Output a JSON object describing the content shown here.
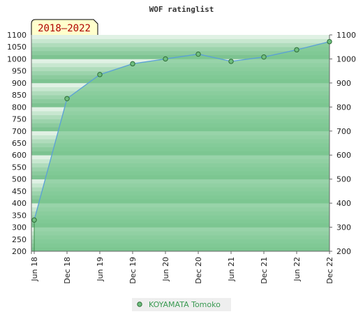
{
  "chart_data": {
    "type": "area",
    "title": "WOF ratinglist",
    "badge": "2018–2022",
    "xlabel": "",
    "ylabel": "",
    "x": [
      "Jun 18",
      "Dec 18",
      "Jun 19",
      "Dec 19",
      "Jun 20",
      "Dec 20",
      "Jun 21",
      "Dec 21",
      "Jun 22",
      "Dec 22"
    ],
    "ylim": [
      200,
      1100
    ],
    "yticks": [
      200,
      250,
      300,
      350,
      400,
      450,
      500,
      550,
      600,
      650,
      700,
      750,
      800,
      850,
      900,
      950,
      1000,
      1050,
      1100
    ],
    "yticks_right": [
      200,
      300,
      400,
      500,
      600,
      700,
      800,
      900,
      1000,
      1100
    ],
    "series": [
      {
        "name": "KOYAMATA Tomoko",
        "values": [
          330,
          835,
          935,
          980,
          1000,
          1020,
          990,
          1008,
          1038,
          1072
        ]
      }
    ],
    "legend_position": "bottom-center",
    "colors": {
      "line": "#5aa0d8",
      "area": "#7cc792",
      "marker": "#3c8f4a",
      "badge_bg": "#ffffcc"
    }
  }
}
